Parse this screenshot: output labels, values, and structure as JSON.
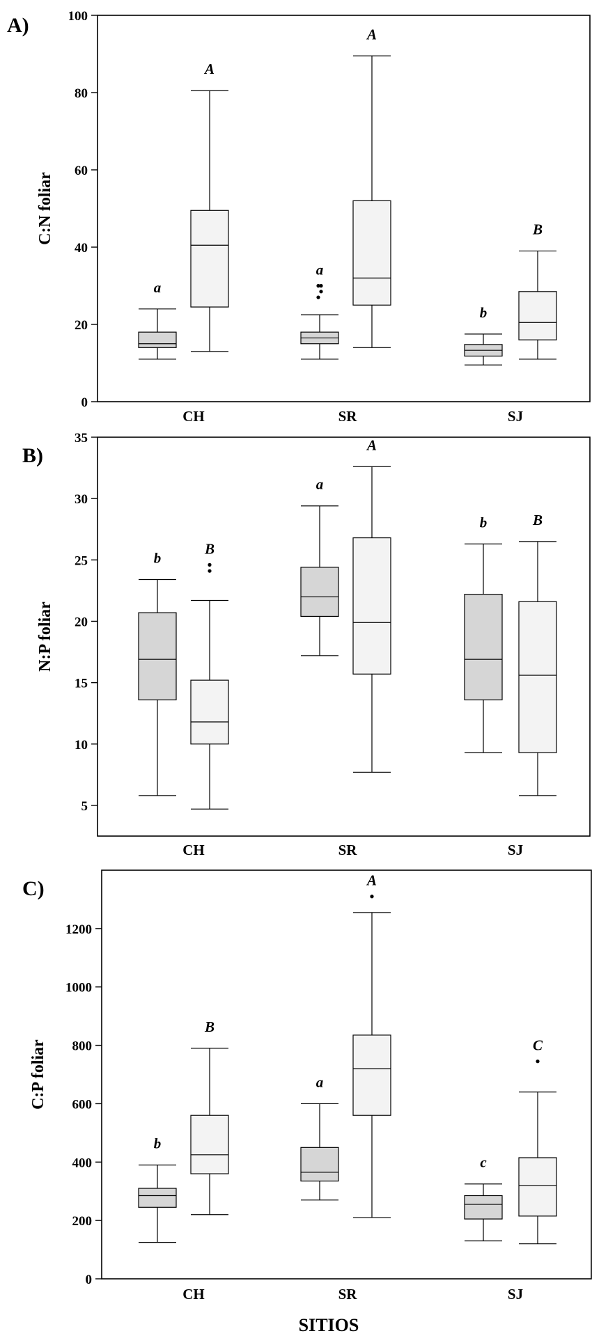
{
  "colors": {
    "box_dark": "#d6d6d6",
    "box_light": "#f3f3f3",
    "stroke": "#000000"
  },
  "x_axis_title": "SITIOS",
  "chart_data": [
    {
      "type": "box",
      "panel": "A)",
      "ylabel": "C:N foliar",
      "ylim": [
        0,
        100
      ],
      "yticks": [
        0,
        20,
        40,
        60,
        80,
        100
      ],
      "categories": [
        "CH",
        "SR",
        "SJ"
      ],
      "series": [
        {
          "name": "dark",
          "boxes": [
            {
              "category": "CH",
              "min": 11,
              "q1": 14,
              "median": 15,
              "q3": 18,
              "max": 24,
              "outliers": [],
              "letter": "a"
            },
            {
              "category": "SR",
              "min": 11,
              "q1": 15,
              "median": 16.5,
              "q3": 18,
              "max": 22.5,
              "outliers": [
                27,
                28.5,
                30,
                30
              ],
              "letter": "a"
            },
            {
              "category": "SJ",
              "min": 9.5,
              "q1": 11.8,
              "median": 13.3,
              "q3": 14.8,
              "max": 17.5,
              "outliers": [],
              "letter": "b"
            }
          ]
        },
        {
          "name": "light",
          "boxes": [
            {
              "category": "CH",
              "min": 13,
              "q1": 24.5,
              "median": 40.5,
              "q3": 49.5,
              "max": 80.5,
              "outliers": [],
              "letter": "A"
            },
            {
              "category": "SR",
              "min": 14,
              "q1": 25,
              "median": 32,
              "q3": 52,
              "max": 89.5,
              "outliers": [],
              "letter": "A"
            },
            {
              "category": "SJ",
              "min": 11,
              "q1": 16,
              "median": 20.5,
              "q3": 28.5,
              "max": 39,
              "outliers": [],
              "letter": "B"
            }
          ]
        }
      ]
    },
    {
      "type": "box",
      "panel": "B)",
      "ylabel": "N:P foliar",
      "ylim": [
        2.5,
        35
      ],
      "yticks": [
        5,
        10,
        15,
        20,
        25,
        30,
        35
      ],
      "categories": [
        "CH",
        "SR",
        "SJ"
      ],
      "series": [
        {
          "name": "dark",
          "boxes": [
            {
              "category": "CH",
              "min": 5.8,
              "q1": 13.6,
              "median": 16.9,
              "q3": 20.7,
              "max": 23.4,
              "outliers": [],
              "letter": "b"
            },
            {
              "category": "SR",
              "min": 17.2,
              "q1": 20.4,
              "median": 22,
              "q3": 24.4,
              "max": 29.4,
              "outliers": [],
              "letter": "a"
            },
            {
              "category": "SJ",
              "min": 9.3,
              "q1": 13.6,
              "median": 16.9,
              "q3": 22.2,
              "max": 26.3,
              "outliers": [],
              "letter": "b"
            }
          ]
        },
        {
          "name": "light",
          "boxes": [
            {
              "category": "CH",
              "min": 4.7,
              "q1": 10,
              "median": 11.8,
              "q3": 15.2,
              "max": 21.7,
              "outliers": [
                24.1,
                24.6
              ],
              "letter": "B"
            },
            {
              "category": "SR",
              "min": 7.7,
              "q1": 15.7,
              "median": 19.9,
              "q3": 26.8,
              "max": 32.6,
              "outliers": [],
              "letter": "A"
            },
            {
              "category": "SJ",
              "min": 5.8,
              "q1": 9.3,
              "median": 15.6,
              "q3": 21.6,
              "max": 26.5,
              "outliers": [],
              "letter": "B"
            }
          ]
        }
      ]
    },
    {
      "type": "box",
      "panel": "C)",
      "ylabel": "C:P foliar",
      "ylim": [
        0,
        1400
      ],
      "yticks": [
        0,
        200,
        400,
        600,
        800,
        1000,
        1200
      ],
      "categories": [
        "CH",
        "SR",
        "SJ"
      ],
      "series": [
        {
          "name": "dark",
          "boxes": [
            {
              "category": "CH",
              "min": 125,
              "q1": 245,
              "median": 285,
              "q3": 310,
              "max": 390,
              "outliers": [],
              "letter": "b"
            },
            {
              "category": "SR",
              "min": 270,
              "q1": 335,
              "median": 365,
              "q3": 450,
              "max": 600,
              "outliers": [],
              "letter": "a"
            },
            {
              "category": "SJ",
              "min": 130,
              "q1": 205,
              "median": 255,
              "q3": 285,
              "max": 325,
              "outliers": [],
              "letter": "c"
            }
          ]
        },
        {
          "name": "light",
          "boxes": [
            {
              "category": "CH",
              "min": 220,
              "q1": 360,
              "median": 425,
              "q3": 560,
              "max": 790,
              "outliers": [],
              "letter": "B"
            },
            {
              "category": "SR",
              "min": 210,
              "q1": 560,
              "median": 720,
              "q3": 835,
              "max": 1255,
              "outliers": [
                1310
              ],
              "letter": "A"
            },
            {
              "category": "SJ",
              "min": 120,
              "q1": 215,
              "median": 320,
              "q3": 415,
              "max": 640,
              "outliers": [
                745
              ],
              "letter": "C"
            }
          ]
        }
      ]
    }
  ]
}
